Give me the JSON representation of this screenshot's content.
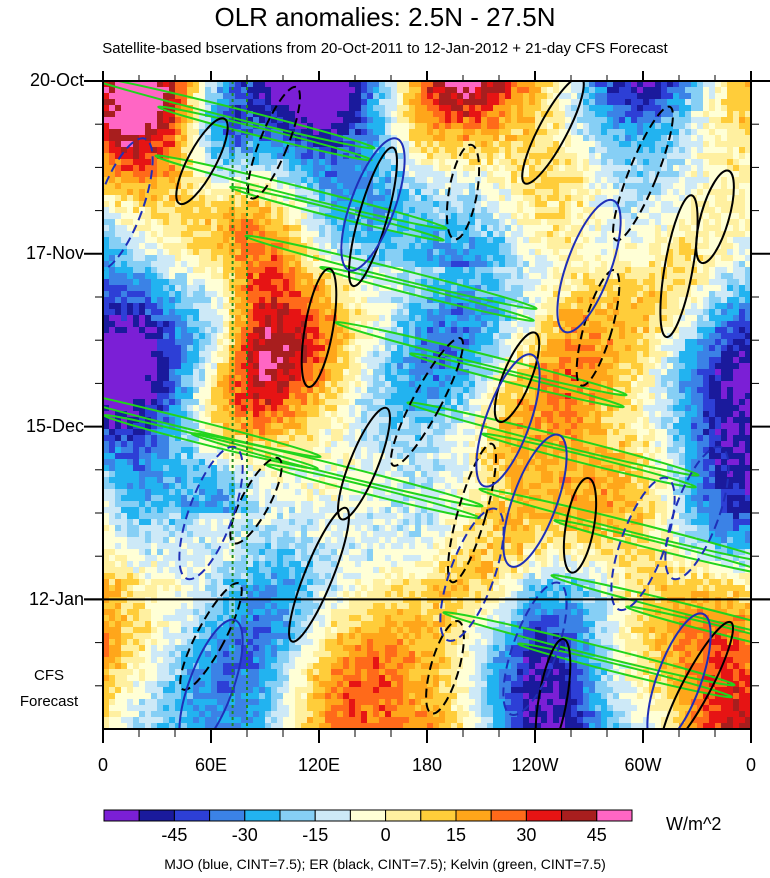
{
  "chart_data": {
    "type": "heatmap",
    "title": "OLR anomalies: 2.5N - 27.5N",
    "subtitle": "Satellite-based bservations from 20-Oct-2011 to 12-Jan-2012 + 21-day CFS Forecast",
    "xlabel": "",
    "ylabel": "",
    "x_ticks": [
      "0",
      "60E",
      "120E",
      "180",
      "120W",
      "60W",
      "0"
    ],
    "x_range_deg": [
      0,
      360
    ],
    "y_ticks": [
      "20-Oct",
      "17-Nov",
      "15-Dec",
      "12-Jan"
    ],
    "y_range_days": [
      0,
      105
    ],
    "observation_end_day": 84,
    "forecast_label": [
      "CFS",
      "Forecast"
    ],
    "colorbar": {
      "units": "W/m^2",
      "tick_labels": [
        "-45",
        "-30",
        "-15",
        "0",
        "15",
        "30",
        "45"
      ],
      "levels": [
        -52.5,
        -45,
        -37.5,
        -30,
        -22.5,
        -15,
        -7.5,
        0,
        7.5,
        15,
        22.5,
        30,
        37.5,
        45,
        52.5
      ],
      "colors": [
        "#7b1fd6",
        "#1a1a9c",
        "#2d3fd6",
        "#3b82e6",
        "#22b3f0",
        "#86cff5",
        "#cde9f7",
        "#ffffd6",
        "#fff0a0",
        "#ffcd3a",
        "#ffa61a",
        "#ff6a1a",
        "#e61414",
        "#a81e1e",
        "#ff66c4"
      ]
    },
    "overlays": [
      {
        "name": "MJO",
        "color": "#1f2fb8",
        "style": "solid-positive / dashed-negative"
      },
      {
        "name": "ER",
        "color": "#000000",
        "style": "solid-positive / dashed-negative"
      },
      {
        "name": "Kelvin",
        "color": "#22d41c",
        "style": "solid"
      }
    ],
    "reference_lines_lon": [
      72,
      80
    ],
    "footer": "MJO (blue, CINT=7.5); ER (black, CINT=7.5); Kelvin (green, CINT=7.5)"
  }
}
